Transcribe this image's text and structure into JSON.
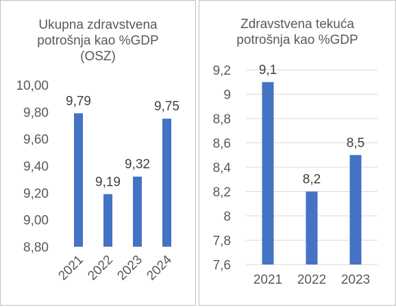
{
  "colors": {
    "bar": "#4472c4",
    "gridline": "#d9d9d9",
    "text": "#595959",
    "data_label": "#404040",
    "border": "#bfbfbf"
  },
  "chart_data": [
    {
      "type": "bar",
      "title": "Ukupna zdravstvena\npotrošnja kao %GDP\n(OSZ)",
      "categories": [
        "2021",
        "2022",
        "2023",
        "2024"
      ],
      "values": [
        9.79,
        9.19,
        9.32,
        9.75
      ],
      "data_labels": [
        "9,79",
        "9,19",
        "9,32",
        "9,75"
      ],
      "y_ticks": [
        "8,80",
        "9,00",
        "9,20",
        "9,40",
        "9,60",
        "9,80",
        "10,00"
      ],
      "ylim": [
        8.8,
        10.0
      ],
      "grid": false,
      "x_tick_rotation": "diagonal",
      "legend": "none"
    },
    {
      "type": "bar",
      "title": "Zdravstvena tekuća\npotrošnja kao %GDP",
      "categories": [
        "2021",
        "2022",
        "2023"
      ],
      "values": [
        9.1,
        8.2,
        8.5
      ],
      "data_labels": [
        "9,1",
        "8,2",
        "8,5"
      ],
      "y_ticks": [
        "7,6",
        "7,8",
        "8",
        "8,2",
        "8,4",
        "8,6",
        "8,8",
        "9",
        "9,2"
      ],
      "ylim": [
        7.6,
        9.2
      ],
      "grid": true,
      "x_tick_rotation": "none",
      "legend": "none"
    }
  ]
}
